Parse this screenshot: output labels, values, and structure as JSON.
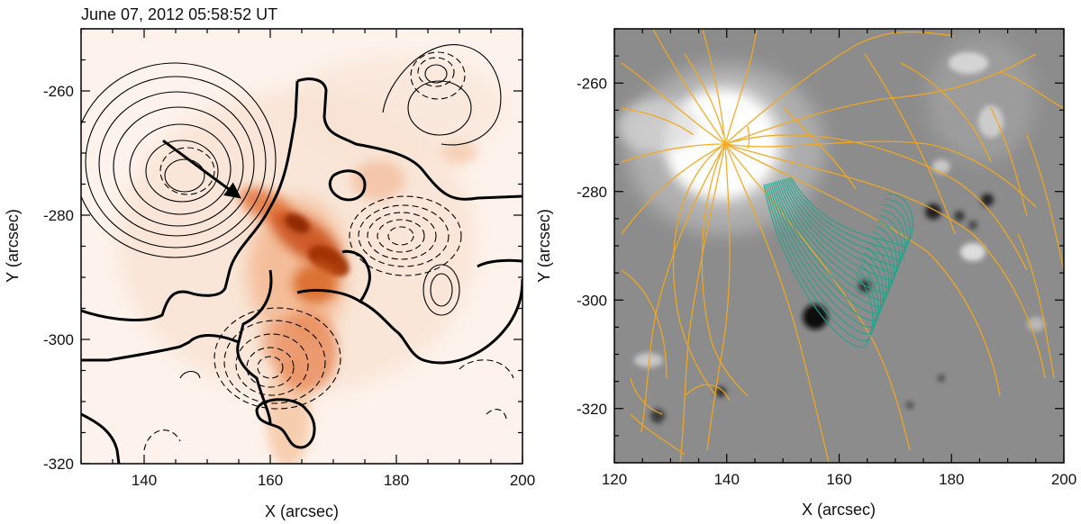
{
  "figure": {
    "left_panel": {
      "timestamp": "June 07, 2012 05:58:52 UT",
      "xlabel": "X (arcsec)",
      "ylabel": "Y (arcsec)",
      "xlim": [
        130,
        200
      ],
      "ylim": [
        -320,
        -250
      ],
      "xticks": [
        140,
        160,
        180,
        200
      ],
      "yticks": [
        -260,
        -280,
        -300,
        -320
      ],
      "arrow": {
        "from": [
          143,
          -268
        ],
        "to": [
          155,
          -277
        ]
      }
    },
    "right_panel": {
      "xlabel": "X (arcsec)",
      "ylabel": "Y (arcsec)",
      "xlim": [
        120,
        200
      ],
      "ylim": [
        -330,
        -250
      ],
      "xticks": [
        120,
        140,
        160,
        180,
        200
      ],
      "yticks": [
        -260,
        -280,
        -300,
        -320
      ]
    },
    "colors": {
      "emission": "#d24a00",
      "contour": "#000000",
      "field_lines": "#f2a81d",
      "flux_rope": "#1fa58c",
      "magnetogram_bg": "#8c8c8c"
    }
  }
}
